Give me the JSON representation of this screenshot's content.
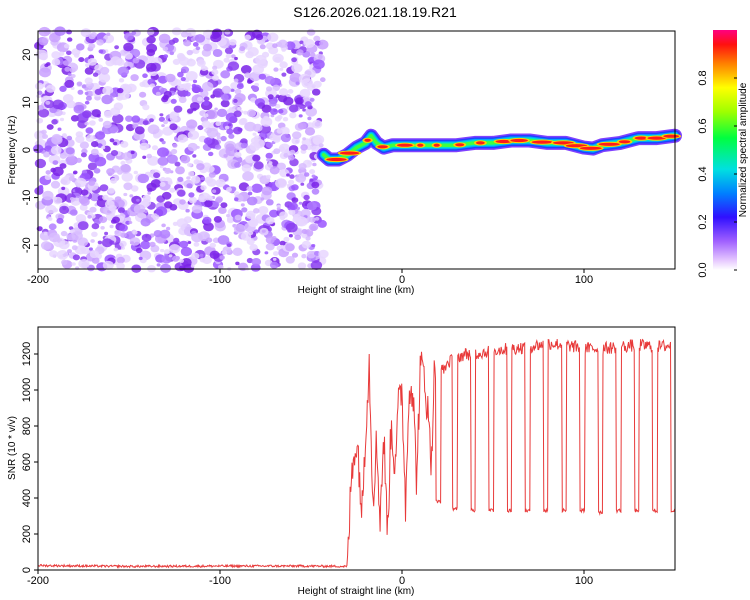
{
  "page": {
    "title": "S126.2026.021.18.19.R21"
  },
  "chart_data": [
    {
      "type": "heatmap",
      "name": "spectrogram",
      "title": "S126.2026.021.18.19.R21",
      "xlabel": "Height of straight line (km)",
      "ylabel": "Frequency (Hz)",
      "xlim": [
        -200,
        150
      ],
      "ylim": [
        -25,
        25
      ],
      "xticks": [
        -200,
        -100,
        0,
        100
      ],
      "yticks": [
        -20,
        -10,
        0,
        10,
        20
      ],
      "noise_region": [
        -200,
        -43
      ],
      "signal_start": -43,
      "signal_trace": {
        "x": [
          -43,
          -40,
          -35,
          -30,
          -25,
          -20,
          -17,
          -14,
          -10,
          -5,
          0,
          10,
          20,
          30,
          40,
          50,
          60,
          70,
          80,
          90,
          100,
          105,
          110,
          120,
          130,
          140,
          150
        ],
        "freq": [
          -1,
          -2,
          -2,
          -1,
          0.5,
          1.5,
          3,
          1.5,
          0.5,
          1,
          1,
          1,
          1,
          1,
          1.5,
          1.5,
          2,
          2,
          1.5,
          1.5,
          0.5,
          0.3,
          1,
          1.5,
          2.5,
          2.5,
          3
        ]
      },
      "colorbar": {
        "label": "Normalized spectral amplitude",
        "range": [
          0,
          1
        ],
        "ticks": [
          0.0,
          0.2,
          0.4,
          0.6,
          0.8
        ],
        "tick_labels": [
          "0.0",
          "0.2",
          "0.4",
          "0.6",
          "0.8"
        ]
      }
    },
    {
      "type": "line",
      "name": "snr",
      "xlabel": "Height of straight line (km)",
      "ylabel": "SNR (10 * v/v)",
      "xlim": [
        -200,
        150
      ],
      "ylim": [
        0,
        1350
      ],
      "xticks": [
        -200,
        -100,
        0,
        100
      ],
      "yticks": [
        0,
        200,
        400,
        600,
        800,
        1000,
        1200
      ],
      "series": [
        {
          "name": "SNR",
          "color": "#e83a3a",
          "x": [
            -200,
            -150,
            -100,
            -50,
            -30,
            -28,
            -26,
            -24,
            -22,
            -20,
            -18,
            -16,
            -14,
            -12,
            -10,
            -8,
            -6,
            -4,
            -2,
            0,
            2,
            4,
            6,
            8,
            10,
            12,
            14,
            16,
            18,
            20,
            22,
            25,
            30,
            35,
            40,
            50,
            60,
            70,
            80,
            90,
            100,
            110,
            120,
            130,
            140,
            150
          ],
          "values": [
            25,
            20,
            22,
            22,
            20,
            480,
            700,
            650,
            300,
            800,
            1150,
            400,
            700,
            300,
            750,
            200,
            800,
            600,
            900,
            1000,
            350,
            1050,
            1000,
            500,
            1100,
            1120,
            900,
            600,
            1150,
            1280,
            1100,
            1150,
            1180,
            1200,
            1200,
            1220,
            1230,
            1240,
            1260,
            1250,
            1230,
            1230,
            1240,
            1250,
            1240,
            1250
          ]
        }
      ],
      "dropouts": [
        {
          "x": 20,
          "to": 380
        },
        {
          "x": 29,
          "to": 340
        },
        {
          "x": 39,
          "to": 330
        },
        {
          "x": 49,
          "to": 330
        },
        {
          "x": 59,
          "to": 330
        },
        {
          "x": 69,
          "to": 330
        },
        {
          "x": 79,
          "to": 330
        },
        {
          "x": 89,
          "to": 330
        },
        {
          "x": 99,
          "to": 330
        },
        {
          "x": 109,
          "to": 320
        },
        {
          "x": 119,
          "to": 330
        },
        {
          "x": 129,
          "to": 330
        },
        {
          "x": 139,
          "to": 330
        },
        {
          "x": 149,
          "to": 330
        }
      ]
    }
  ]
}
